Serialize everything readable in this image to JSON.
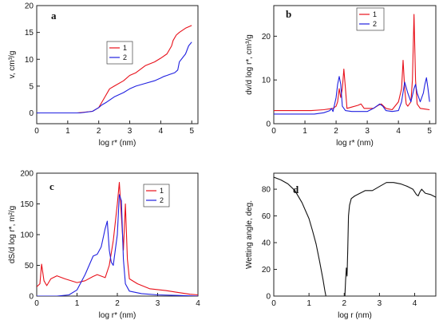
{
  "chart_data": [
    {
      "panel": "a",
      "type": "line",
      "xlabel": "log r* (nm)",
      "ylabel": "v, cm³/g",
      "xlim": [
        0,
        5.2
      ],
      "ylim": [
        -2,
        20
      ],
      "xticks": [
        0,
        1,
        2,
        3,
        4,
        5
      ],
      "yticks": [
        0,
        5,
        10,
        15,
        20
      ],
      "legend": "top-right",
      "series": [
        {
          "name": "1",
          "color": "#e8101a",
          "x": [
            0,
            1.3,
            1.8,
            2.0,
            2.1,
            2.2,
            2.35,
            2.5,
            2.8,
            3.0,
            3.2,
            3.5,
            3.8,
            4.0,
            4.2,
            4.35,
            4.4,
            4.5,
            4.6,
            4.8,
            5.0
          ],
          "y": [
            0,
            0,
            0.3,
            1.0,
            2.0,
            3.0,
            4.5,
            5.0,
            6.0,
            7.0,
            7.5,
            8.8,
            9.5,
            10.2,
            11.0,
            12.5,
            13.5,
            14.5,
            15.0,
            15.8,
            16.3
          ]
        },
        {
          "name": "2",
          "color": "#2020e0",
          "x": [
            0,
            1.4,
            1.8,
            2.0,
            2.1,
            2.25,
            2.5,
            2.8,
            3.0,
            3.2,
            3.5,
            3.8,
            4.0,
            4.1,
            4.2,
            4.3,
            4.45,
            4.55,
            4.6,
            4.8,
            4.9,
            5.0
          ],
          "y": [
            0,
            0,
            0.3,
            1.0,
            1.5,
            2.0,
            3.0,
            3.8,
            4.5,
            5.0,
            5.5,
            6.0,
            6.5,
            6.8,
            7.0,
            7.2,
            7.5,
            8.0,
            9.5,
            11.0,
            12.5,
            13.2
          ]
        }
      ]
    },
    {
      "panel": "b",
      "type": "line",
      "xlabel": "log r* (nm)",
      "ylabel": "dv/d log r*, cm³/g",
      "xlim": [
        0,
        5.2
      ],
      "ylim": [
        0,
        27
      ],
      "xticks": [
        0,
        1,
        2,
        3,
        4,
        5
      ],
      "yticks": [
        0,
        10,
        20
      ],
      "legend": "top-right",
      "series": [
        {
          "name": "1",
          "color": "#e8101a",
          "x": [
            0,
            1.2,
            1.6,
            1.9,
            2.0,
            2.05,
            2.1,
            2.15,
            2.2,
            2.25,
            2.3,
            2.35,
            2.5,
            2.7,
            2.8,
            2.9,
            3.0,
            3.2,
            3.35,
            3.45,
            3.6,
            3.8,
            4.0,
            4.1,
            4.15,
            4.2,
            4.25,
            4.3,
            4.4,
            4.45,
            4.5,
            4.55,
            4.6,
            4.7,
            4.9,
            5.0
          ],
          "y": [
            3,
            3,
            3.2,
            3.5,
            4,
            5,
            8,
            6,
            8,
            12.5,
            8,
            3.5,
            3.8,
            4.2,
            4.5,
            3.5,
            3.5,
            3.5,
            4.2,
            4.5,
            3.5,
            3.2,
            5,
            8,
            14.5,
            8,
            4.5,
            4,
            5,
            10,
            25,
            10,
            4.5,
            3.5,
            3.3,
            3.2
          ]
        },
        {
          "name": "2",
          "color": "#2020e0",
          "x": [
            0,
            1.3,
            1.6,
            1.8,
            1.85,
            1.9,
            2.0,
            2.05,
            2.1,
            2.15,
            2.2,
            2.3,
            2.5,
            2.8,
            3.0,
            3.2,
            3.4,
            3.5,
            3.6,
            3.8,
            4.0,
            4.1,
            4.2,
            4.3,
            4.4,
            4.5,
            4.55,
            4.6,
            4.7,
            4.8,
            4.85,
            4.9,
            4.95,
            5.0
          ],
          "y": [
            2.2,
            2.2,
            2.5,
            3.0,
            3.5,
            2.8,
            6,
            9,
            10.8,
            9,
            4,
            3.0,
            2.8,
            2.8,
            2.8,
            3.5,
            4.5,
            4.0,
            3.0,
            2.8,
            3.0,
            5,
            9.5,
            7,
            5,
            8,
            9,
            7,
            5,
            7,
            9,
            10.5,
            8,
            5
          ]
        }
      ]
    },
    {
      "panel": "c",
      "type": "line",
      "xlabel": "log r* (nm)",
      "ylabel": "dS/d log r*, m²/g",
      "xlim": [
        0,
        4
      ],
      "ylim": [
        0,
        200
      ],
      "xticks": [
        0,
        1,
        2,
        3,
        4
      ],
      "yticks": [
        0,
        50,
        100,
        150,
        200
      ],
      "legend": "top-right",
      "series": [
        {
          "name": "1",
          "color": "#e8101a",
          "x": [
            0,
            0.08,
            0.12,
            0.18,
            0.25,
            0.35,
            0.5,
            0.7,
            1.0,
            1.2,
            1.4,
            1.5,
            1.7,
            1.8,
            1.9,
            2.0,
            2.05,
            2.1,
            2.15,
            2.2,
            2.25,
            2.3,
            2.5,
            2.8,
            3.2,
            3.5,
            3.8,
            4.0
          ],
          "y": [
            15,
            20,
            52,
            25,
            17,
            28,
            33,
            28,
            22,
            25,
            32,
            35,
            30,
            50,
            90,
            150,
            185,
            130,
            75,
            150,
            60,
            28,
            20,
            12,
            9,
            6,
            3,
            2
          ]
        },
        {
          "name": "2",
          "color": "#2020e0",
          "x": [
            0,
            0.5,
            0.8,
            1.0,
            1.2,
            1.4,
            1.5,
            1.6,
            1.7,
            1.75,
            1.8,
            1.85,
            1.9,
            2.0,
            2.05,
            2.1,
            2.15,
            2.2,
            2.3,
            2.6,
            3.0,
            3.5,
            4.0
          ],
          "y": [
            0,
            0,
            2,
            10,
            35,
            65,
            68,
            80,
            110,
            122,
            75,
            55,
            50,
            100,
            165,
            155,
            60,
            20,
            8,
            4,
            2,
            1,
            0
          ]
        }
      ]
    },
    {
      "panel": "d",
      "type": "line",
      "xlabel": "log r (nm)",
      "ylabel": "Wetting angle, deg.",
      "xlim": [
        0,
        4.6
      ],
      "ylim": [
        0,
        92
      ],
      "xticks": [
        0,
        1,
        2,
        3,
        4
      ],
      "yticks": [
        0,
        20,
        40,
        60,
        80
      ],
      "series": [
        {
          "color": "#111111",
          "segments": [
            {
              "x": [
                0,
                0.2,
                0.4,
                0.6,
                0.8,
                1.0,
                1.1,
                1.2,
                1.3,
                1.4,
                1.45,
                1.48
              ],
              "y": [
                89,
                87,
                84,
                79,
                70,
                58,
                49,
                39,
                26,
                12,
                4,
                0
              ]
            },
            {
              "x": [
                2.02,
                2.04,
                2.06,
                2.08,
                2.1,
                2.12,
                2.15,
                2.2,
                2.3,
                2.45,
                2.6,
                2.8,
                3.0,
                3.2,
                3.4,
                3.6,
                3.8,
                3.95,
                4.05,
                4.1,
                4.15,
                4.2,
                4.3,
                4.45,
                4.6
              ],
              "y": [
                0,
                12,
                21,
                15,
                35,
                60,
                68,
                73,
                75,
                77,
                79,
                79,
                82,
                85,
                85,
                84,
                82,
                80,
                76,
                75,
                78,
                80,
                77,
                76,
                74
              ]
            }
          ]
        }
      ]
    }
  ]
}
